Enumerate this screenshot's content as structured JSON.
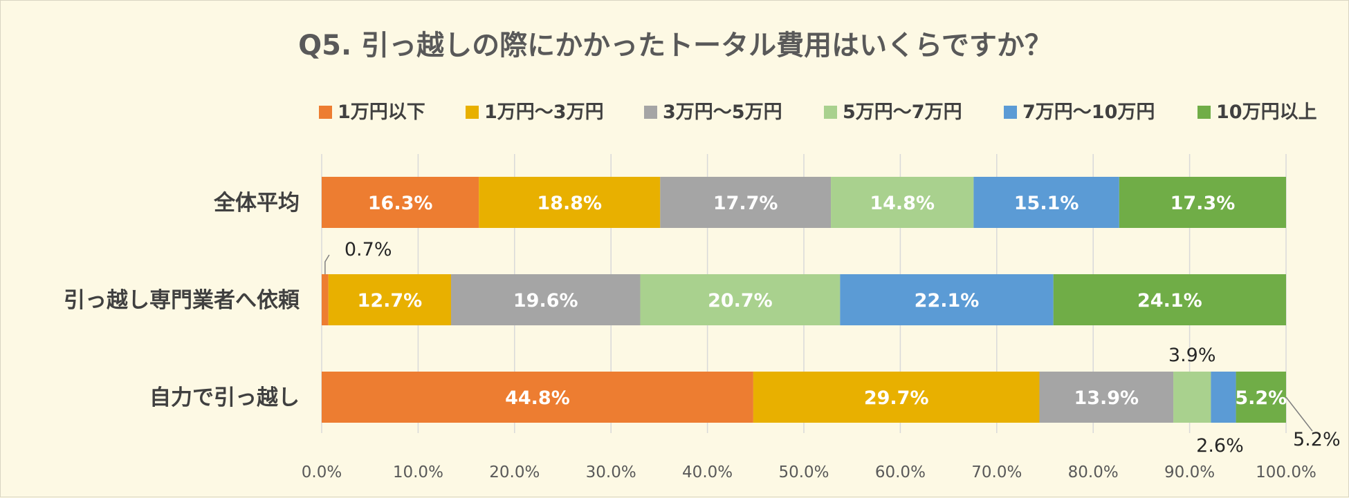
{
  "chart_data": {
    "type": "bar",
    "orientation": "horizontal",
    "stacked": true,
    "percent_stacked": true,
    "title": "Q5. 引っ越しの際にかかったトータル費用はいくらですか？",
    "categories": [
      "全体平均",
      "引っ越し専門業者へ依頼",
      "自力で引っ越し"
    ],
    "series": [
      {
        "name": "1万円以下",
        "color": "#ed7d31",
        "values": [
          16.3,
          0.7,
          44.8
        ]
      },
      {
        "name": "1万円～3万円",
        "color": "#e8b000",
        "values": [
          18.8,
          12.7,
          29.7
        ]
      },
      {
        "name": "3万円～5万円",
        "color": "#a5a5a5",
        "values": [
          17.7,
          19.6,
          13.9
        ]
      },
      {
        "name": "5万円～7万円",
        "color": "#a9d18e",
        "values": [
          14.8,
          20.7,
          3.9
        ]
      },
      {
        "name": "7万円～10万円",
        "color": "#5b9bd5",
        "values": [
          15.1,
          22.1,
          2.6
        ]
      },
      {
        "name": "10万円以上",
        "color": "#70ad47",
        "values": [
          17.3,
          24.1,
          5.2
        ]
      }
    ],
    "data_labels": [
      [
        "16.3%",
        "18.8%",
        "17.7%",
        "14.8%",
        "15.1%",
        "17.3%"
      ],
      [
        "0.7%",
        "12.7%",
        "19.6%",
        "20.7%",
        "22.1%",
        "24.1%"
      ],
      [
        "44.8%",
        "29.7%",
        "13.9%",
        "3.9%",
        "2.6%",
        "5.2%"
      ]
    ],
    "xlim": [
      0,
      100
    ],
    "xticks": [
      "0.0%",
      "10.0%",
      "20.0%",
      "30.0%",
      "40.0%",
      "50.0%",
      "60.0%",
      "70.0%",
      "80.0%",
      "90.0%",
      "100.0%"
    ],
    "grid": "vertical",
    "legend": "top"
  }
}
